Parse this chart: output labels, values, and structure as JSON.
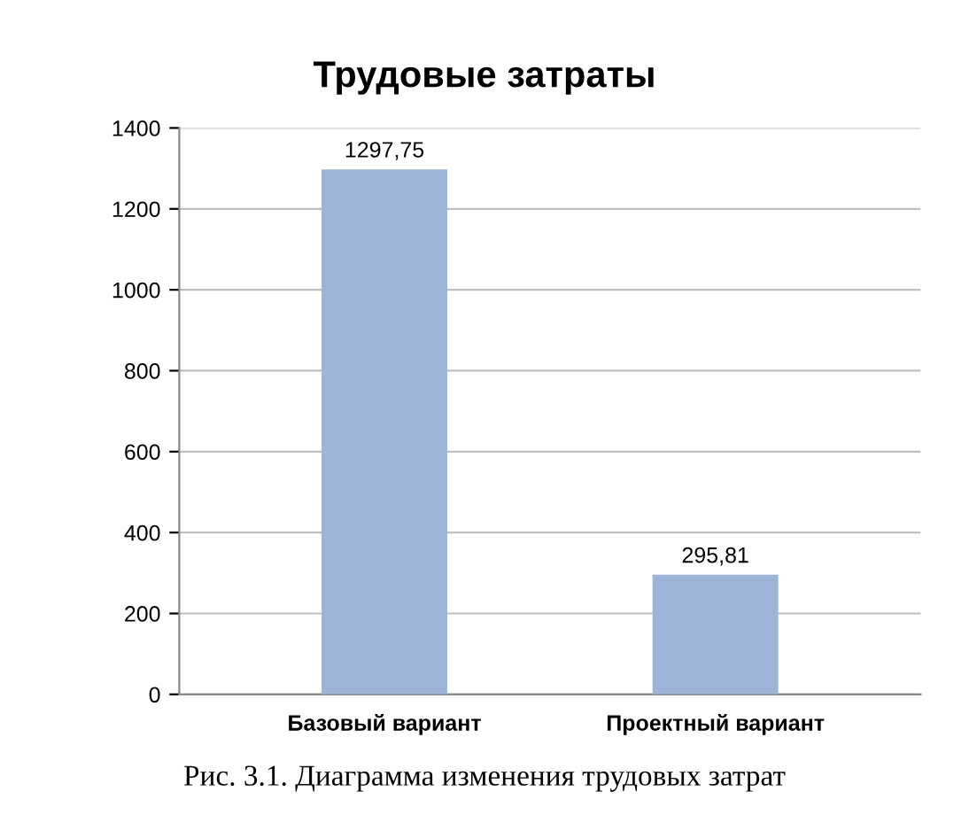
{
  "chart_data": {
    "type": "bar",
    "title": "Трудовые затраты",
    "categories": [
      "Базовый вариант",
      "Проектный вариант"
    ],
    "values": [
      1297.75,
      295.81
    ],
    "value_labels": [
      "1297,75",
      "295,81"
    ],
    "color": "#9db3d8",
    "ylim": [
      0,
      1400
    ],
    "yticks": [
      0,
      200,
      400,
      600,
      800,
      1000,
      1200,
      1400
    ],
    "grid": "y",
    "annotations": [
      "Рис. 3.1. Диаграмма изменения трудовых затрат"
    ]
  }
}
